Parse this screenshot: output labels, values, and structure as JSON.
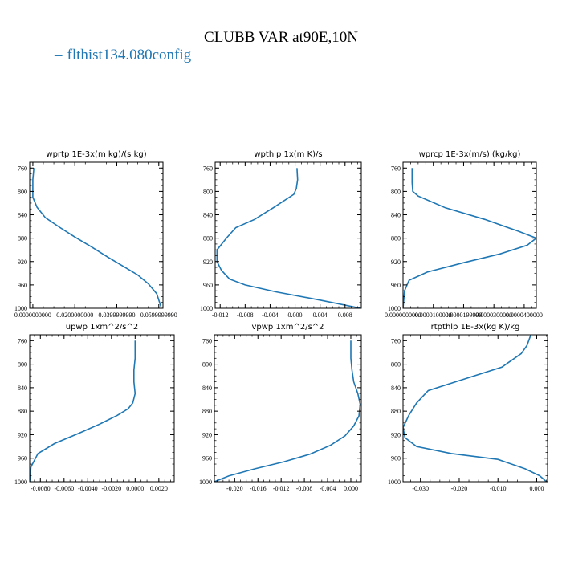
{
  "title": "CLUBB VAR at90E,10N",
  "legend": {
    "marker": "–",
    "label": "flthist134.080config"
  },
  "colors": {
    "series": "#1f77b4",
    "axis": "#000000"
  },
  "chart_data": [
    {
      "type": "line",
      "title": "wprtp  1E-3x(m kg)/(s kg)",
      "series_name": "flthist134.080config",
      "xlim": [
        -0.0015,
        0.062
      ],
      "ylim": [
        1000,
        750
      ],
      "yticks": [
        760,
        800,
        840,
        880,
        920,
        960,
        1000
      ],
      "xticks": [
        0.0,
        0.02,
        0.04,
        0.06
      ],
      "xticklabels": [
        "0.0000000000",
        "0.0200000000",
        "0.0399999990",
        "0.0599999990"
      ],
      "x": [
        0.0005,
        0.0,
        0.0,
        0.0,
        0.002,
        0.006,
        0.013,
        0.02,
        0.028,
        0.036,
        0.043,
        0.05,
        0.055,
        0.059,
        0.061
      ],
      "y": [
        760,
        780,
        800,
        810,
        827,
        845,
        862,
        878,
        895,
        913,
        928,
        943,
        958,
        975,
        997
      ]
    },
    {
      "type": "line",
      "title": "wpthlp  1x(m K)/s",
      "series_name": "flthist134.080config",
      "xlim": [
        -0.0128,
        0.0106
      ],
      "ylim": [
        1000,
        750
      ],
      "yticks": [
        760,
        800,
        840,
        880,
        920,
        960,
        1000
      ],
      "xticks": [
        -0.012,
        -0.008,
        -0.004,
        0.0,
        0.004,
        0.008
      ],
      "xticklabels": [
        "-0.012",
        "-0.008",
        "-0.004",
        "0.000",
        "0.004",
        "0.008"
      ],
      "x": [
        0.0003,
        0.0004,
        0.0002,
        -0.0002,
        -0.0035,
        -0.0065,
        -0.0095,
        -0.011,
        -0.0125,
        -0.0125,
        -0.0118,
        -0.0105,
        -0.008,
        -0.003,
        0.004,
        0.0105
      ],
      "y": [
        760,
        780,
        795,
        805,
        828,
        848,
        862,
        880,
        900,
        920,
        935,
        950,
        960,
        972,
        986,
        1000
      ]
    },
    {
      "type": "line",
      "title": "wprcp  1E-3x(m/s) (kg/kg)",
      "series_name": "flthist134.080config",
      "xlim": [
        0.0,
        4.4e-05
      ],
      "ylim": [
        1000,
        750
      ],
      "yticks": [
        760,
        800,
        840,
        880,
        920,
        960,
        1000
      ],
      "xticks": [
        0.0,
        1e-05,
        2e-05,
        3e-05,
        4e-05
      ],
      "xticklabels": [
        "0.0000000000",
        "0.0000100000",
        "0.0000199999",
        "0.0000300000",
        "0.0000400000"
      ],
      "x": [
        3e-06,
        3e-06,
        3.2e-06,
        5e-06,
        1.4e-05,
        2.7e-05,
        3.8e-05,
        4.4e-05,
        4.1e-05,
        3.2e-05,
        2e-05,
        8e-06,
        2e-06,
        5e-07,
        0.0
      ],
      "y": [
        760,
        785,
        800,
        808,
        828,
        848,
        868,
        880,
        892,
        907,
        922,
        938,
        952,
        970,
        1000
      ]
    },
    {
      "type": "line",
      "title": "upwp  1xm^2/s^2",
      "series_name": "flthist134.080config",
      "xlim": [
        -0.0089,
        0.0033
      ],
      "ylim": [
        1000,
        750
      ],
      "yticks": [
        760,
        800,
        840,
        880,
        920,
        960,
        1000
      ],
      "xticks": [
        -0.008,
        -0.006,
        -0.004,
        -0.002,
        0.0,
        0.002
      ],
      "xticklabels": [
        "-0.0080",
        "-0.0060",
        "-0.0040",
        "-0.0020",
        "0.0000",
        "0.0020"
      ],
      "x": [
        0.0,
        0.0,
        -0.0001,
        -0.0001,
        0.0,
        -0.0002,
        -0.0006,
        -0.0015,
        -0.003,
        -0.0048,
        -0.0068,
        -0.0082,
        -0.0088,
        -0.0089
      ],
      "y": [
        760,
        790,
        810,
        830,
        850,
        866,
        876,
        887,
        902,
        918,
        935,
        952,
        975,
        1000
      ]
    },
    {
      "type": "line",
      "title": "vpwp  1xm^2/s^2",
      "series_name": "flthist134.080config",
      "xlim": [
        -0.0235,
        0.0018
      ],
      "ylim": [
        1000,
        750
      ],
      "yticks": [
        760,
        800,
        840,
        880,
        920,
        960,
        1000
      ],
      "xticks": [
        -0.02,
        -0.016,
        -0.012,
        -0.008,
        -0.004,
        0.0
      ],
      "xticklabels": [
        "-0.020",
        "-0.016",
        "-0.012",
        "-0.008",
        "-0.004",
        "0.000"
      ],
      "x": [
        0.0,
        0.0,
        0.0002,
        0.0005,
        0.0012,
        0.0016,
        0.0014,
        0.0005,
        -0.001,
        -0.0035,
        -0.007,
        -0.0115,
        -0.0165,
        -0.021,
        -0.0235
      ],
      "y": [
        760,
        790,
        810,
        830,
        850,
        868,
        888,
        905,
        922,
        938,
        953,
        966,
        978,
        990,
        1000
      ]
    },
    {
      "type": "line",
      "title": "rtpthlp  1E-3x(kg K)/kg",
      "series_name": "flthist134.080config",
      "xlim": [
        -0.0345,
        0.0028
      ],
      "ylim": [
        1000,
        750
      ],
      "yticks": [
        760,
        800,
        840,
        880,
        920,
        960,
        1000
      ],
      "xticks": [
        -0.03,
        -0.02,
        -0.01,
        0.0
      ],
      "xticklabels": [
        "-0.030",
        "-0.020",
        "-0.010",
        "0.000"
      ],
      "x": [
        -0.0015,
        -0.0025,
        -0.004,
        -0.009,
        -0.02,
        -0.028,
        -0.031,
        -0.033,
        -0.0345,
        -0.034,
        -0.031,
        -0.022,
        -0.01,
        -0.003,
        0.0008,
        0.0025
      ],
      "y": [
        750,
        768,
        782,
        805,
        828,
        845,
        866,
        887,
        908,
        925,
        940,
        952,
        962,
        978,
        990,
        1000
      ]
    }
  ]
}
